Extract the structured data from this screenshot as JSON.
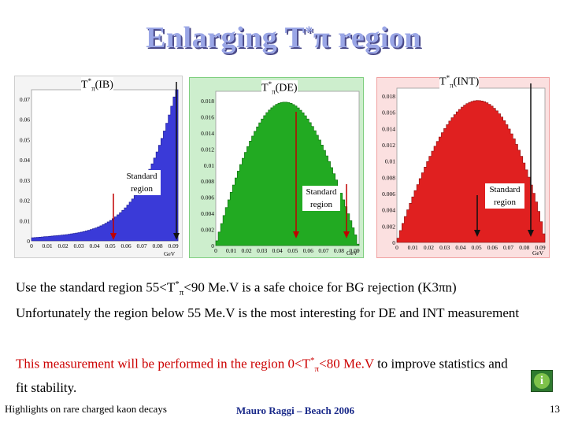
{
  "slide": {
    "title_prefix": "Enlarging T",
    "title_sup": "*",
    "title_pi": "π",
    "title_suffix": " region"
  },
  "plots": [
    {
      "label_prefix": "T",
      "label_sup": "*",
      "label_sub": "π",
      "label_suffix": "(IB)",
      "note_line1": "Standard",
      "note_line2": "region",
      "x_axis_unit": "GeV",
      "fill_color": "#3a3ad8",
      "frame_color": "#cfcfcf",
      "y_ticks": [
        "0",
        "0.01",
        "0.02",
        "0.03",
        "0.04",
        "0.05",
        "0.06",
        "0.07"
      ],
      "x_ticks": [
        "0",
        "0.01",
        "0.02",
        "0.03",
        "0.04",
        "0.05",
        "0.06",
        "0.07",
        "0.08",
        "0.09"
      ]
    },
    {
      "label_prefix": "T",
      "label_sup": "*",
      "label_sub": "π",
      "label_suffix": "(DE)",
      "note_line1": "Standard",
      "note_line2": "region",
      "x_axis_unit": "GeV",
      "fill_color": "#22aa22",
      "frame_color": "#7fcf7f",
      "y_ticks": [
        "0",
        "0.002",
        "0.004",
        "0.006",
        "0.008",
        "0.01",
        "0.012",
        "0.014",
        "0.016",
        "0.018"
      ],
      "x_ticks": [
        "0",
        "0.01",
        "0.02",
        "0.03",
        "0.04",
        "0.05",
        "0.06",
        "0.07",
        "0.08",
        "0.09"
      ]
    },
    {
      "label_prefix": "T",
      "label_sup": "*",
      "label_sub": "π",
      "label_suffix": "(INT)",
      "note_line1": "Standard",
      "note_line2": "region",
      "x_axis_unit": "GeV",
      "fill_color": "#e02020",
      "frame_color": "#f0a0a0",
      "y_ticks": [
        "0",
        "0.002",
        "0.004",
        "0.006",
        "0.008",
        "0.01",
        "0.012",
        "0.014",
        "0.016",
        "0.018"
      ],
      "x_ticks": [
        "0",
        "0.01",
        "0.02",
        "0.03",
        "0.04",
        "0.05",
        "0.06",
        "0.07",
        "0.08",
        "0.09"
      ]
    }
  ],
  "bullets": {
    "b1_prefix": "Use the standard region 55<T",
    "b1_sup": "*",
    "b1_sub": "π",
    "b1_suffix": "<90 Me.V is a safe choice for BG rejection (K3πn)",
    "b2": "Unfortunately the region below 55 Me.V is the most interesting for DE and INT measurement",
    "b3_red_prefix": "This measurement will be performed in the region 0<T",
    "b3_sup": "*",
    "b3_sub": "π",
    "b3_red_suffix": "<80 Me.V",
    "b3_rest": " to improve statistics and fit stability."
  },
  "footer": {
    "left": "Highlights on rare charged kaon decays",
    "center": "Mauro Raggi – Beach 2006",
    "page_number": "13"
  },
  "info_button": {
    "glyph": "i"
  }
}
